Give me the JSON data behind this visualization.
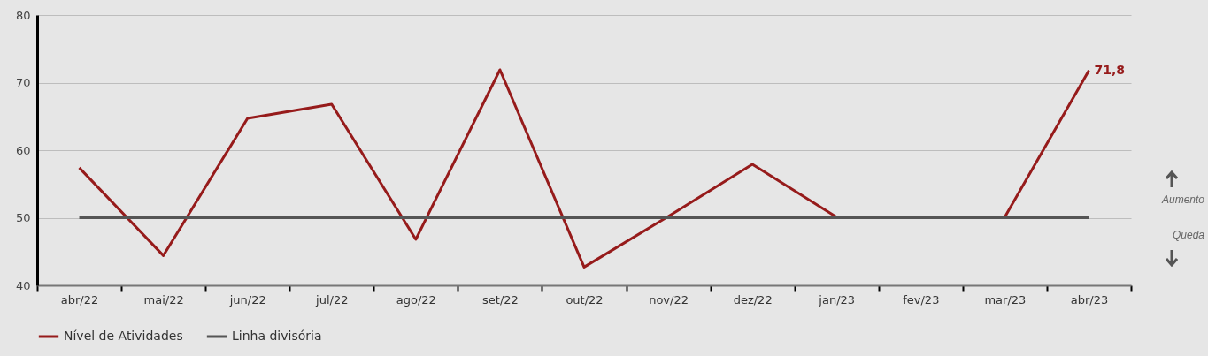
{
  "chart_data": {
    "type": "line",
    "categories": [
      "abr/22",
      "mai/22",
      "jun/22",
      "jul/22",
      "ago/22",
      "set/22",
      "out/22",
      "nov/22",
      "dez/22",
      "jan/23",
      "fev/23",
      "mar/23",
      "abr/23"
    ],
    "series": [
      {
        "name": "Nível de Atividades",
        "color": "#961b1b",
        "values": [
          57.4,
          44.4,
          64.7,
          66.8,
          46.8,
          71.9,
          42.7,
          50.2,
          57.9,
          50.1,
          50.1,
          50.1,
          71.8
        ],
        "value_labels": [
          null,
          null,
          null,
          null,
          null,
          null,
          null,
          null,
          null,
          null,
          null,
          null,
          "71,8"
        ]
      },
      {
        "name": "Linha divisória",
        "color": "#555555",
        "values": [
          50,
          50,
          50,
          50,
          50,
          50,
          50,
          50,
          50,
          50,
          50,
          50,
          50
        ]
      }
    ],
    "ylim": [
      40,
      80
    ],
    "yticks": [
      40,
      50,
      60,
      70,
      80
    ],
    "grid": "y",
    "legend": "bottom",
    "annotations": [
      "Aumento",
      "Queda"
    ]
  }
}
